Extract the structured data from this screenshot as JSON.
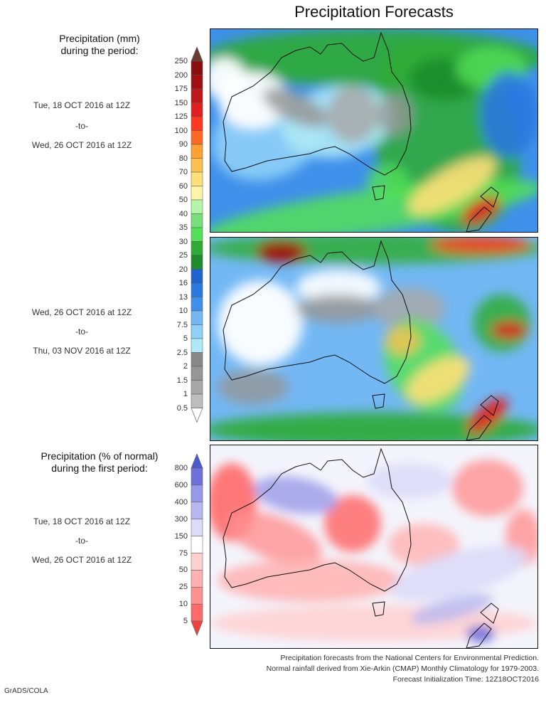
{
  "title": "Precipitation Forecasts",
  "amount_legend": {
    "header": [
      "Precipitation (mm)",
      "during the period:"
    ],
    "ticks": [
      "250",
      "200",
      "175",
      "150",
      "125",
      "100",
      "90",
      "80",
      "70",
      "60",
      "50",
      "40",
      "35",
      "30",
      "25",
      "20",
      "16",
      "13",
      "10",
      "7.5",
      "5",
      "2.5",
      "2",
      "1.5",
      "1",
      "0.5"
    ],
    "colors_top_to_bottom": [
      "#6b3a30",
      "#8b0d0d",
      "#a01010",
      "#c01818",
      "#e02020",
      "#ff3820",
      "#ff6820",
      "#ffa030",
      "#ffc050",
      "#ffe078",
      "#fff5a8",
      "#b4f5a8",
      "#78e07a",
      "#53e058",
      "#2eab34",
      "#1e8c2c",
      "#1f63cf",
      "#2a78e0",
      "#3f90ea",
      "#73b8f5",
      "#8fd0f8",
      "#aee9f7",
      "#888888",
      "#969696",
      "#a8a8a8",
      "#bdbdbd",
      "#ffffff"
    ]
  },
  "period1": {
    "start": "Tue, 18 OCT 2016 at 12Z",
    "to": "-to-",
    "end": "Wed, 26 OCT 2016 at 12Z"
  },
  "period2": {
    "start": "Wed, 26 OCT 2016 at 12Z",
    "to": "-to-",
    "end": "Thu, 03 NOV 2016 at 12Z"
  },
  "percent_legend": {
    "header": [
      "Precipitation (% of normal)",
      "during the first period:"
    ],
    "ticks": [
      "800",
      "600",
      "400",
      "300",
      "150",
      "75",
      "50",
      "25",
      "10",
      "5"
    ],
    "colors_top_to_bottom": [
      "#4a5ad0",
      "#7070dc",
      "#9898e8",
      "#b8b8f0",
      "#dcdcf8",
      "#ffffff",
      "#ffd0d0",
      "#ffb0b0",
      "#ff9090",
      "#ff6a6a",
      "#f04040"
    ]
  },
  "period3": {
    "start": "Tue, 18 OCT 2016 at 12Z",
    "to": "-to-",
    "end": "Wed, 26 OCT 2016 at 12Z"
  },
  "footer": [
    "Precipitation forecasts from the National Centers for Environmental Prediction.",
    "Normal rainfall derived from Xie-Arkin (CMAP) Monthly Climatology for 1979-2003.",
    "Forecast Initialization Time: 12Z18OCT2016"
  ],
  "credit": "GrADS/COLA"
}
